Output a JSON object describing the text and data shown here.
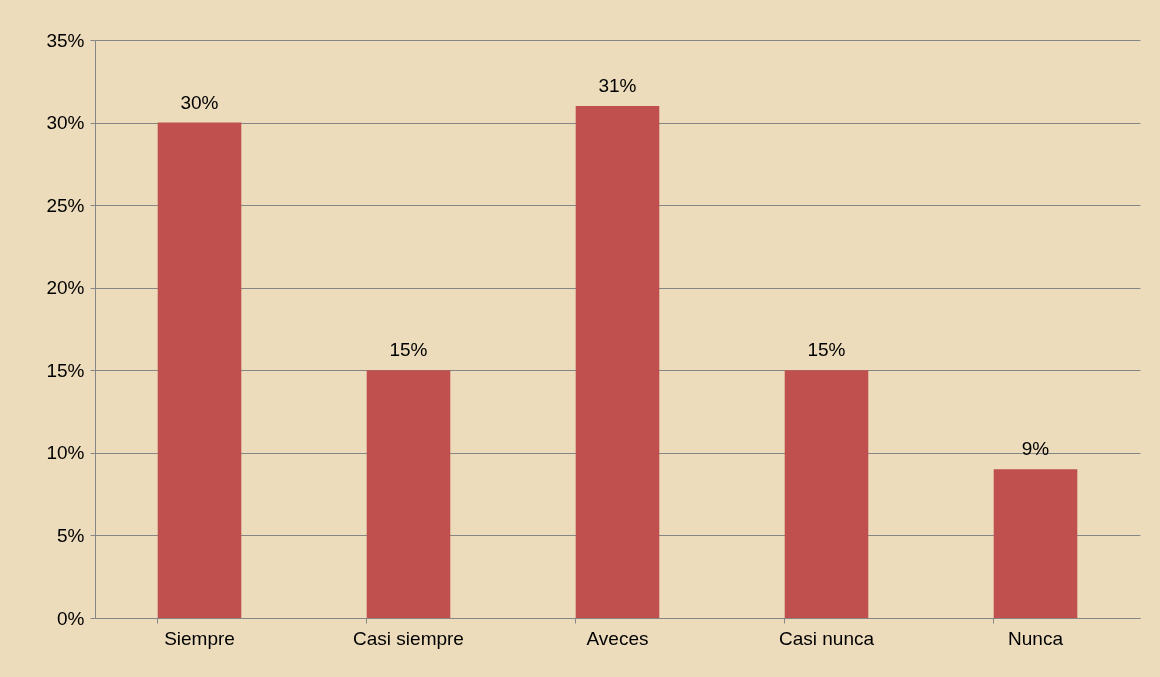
{
  "chart_data": {
    "type": "bar",
    "categories": [
      "Siempre",
      "Casi siempre",
      "Aveces",
      "Casi nunca",
      "Nunca"
    ],
    "values": [
      30,
      15,
      31,
      15,
      9
    ],
    "value_labels": [
      "30%",
      "15%",
      "31%",
      "15%",
      "9%"
    ],
    "color": "#c0504d",
    "ylim": [
      0,
      35
    ],
    "yticks": [
      {
        "value": 0,
        "label": "0%"
      },
      {
        "value": 5,
        "label": "5%"
      },
      {
        "value": 10,
        "label": "10%"
      },
      {
        "value": 15,
        "label": "15%"
      },
      {
        "value": 20,
        "label": "20%"
      },
      {
        "value": 25,
        "label": "25%"
      },
      {
        "value": 30,
        "label": "30%"
      },
      {
        "value": 35,
        "label": "35%"
      }
    ],
    "grid": "y"
  }
}
